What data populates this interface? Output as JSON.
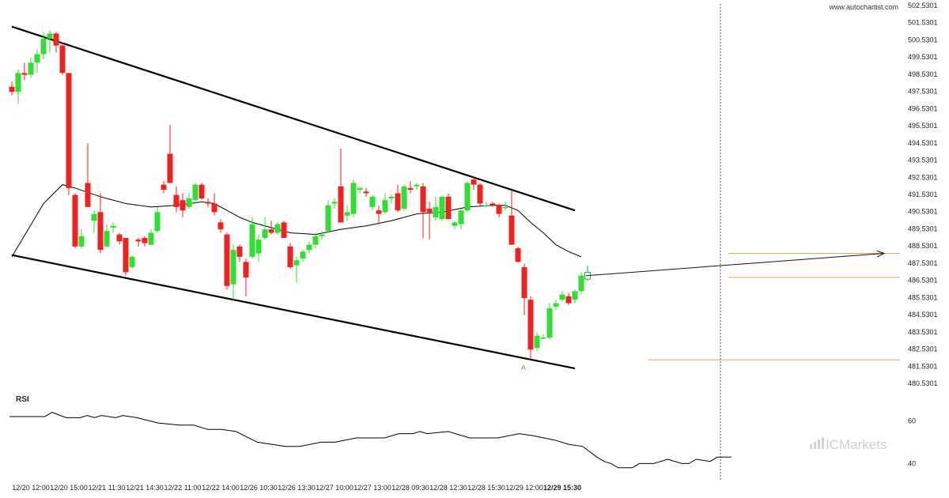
{
  "site": "www.autochartist.com",
  "brand": {
    "prefix": "IC",
    "suffix": "Markets"
  },
  "colors": {
    "up": "#33dd33",
    "down": "#ee2222",
    "pattern": "#000000",
    "level": "#e8a060",
    "ma": "#000000",
    "rsi": "#000000"
  },
  "chart_data": {
    "type": "candlestick",
    "title": "",
    "ylim": [
      480.0,
      502.8
    ],
    "y_ticks": [
      502.5301,
      501.5301,
      500.5301,
      499.5301,
      498.5301,
      497.5301,
      496.5301,
      495.5301,
      494.5301,
      493.5301,
      492.5301,
      491.5301,
      490.5301,
      489.5301,
      488.5301,
      487.5301,
      486.5301,
      485.5301,
      484.5301,
      483.5301,
      482.5301,
      481.5301,
      480.5301
    ],
    "y_tick_labels": [
      "502.5301",
      "501.5301",
      "500.5301",
      "499.5301",
      "498.5301",
      "497.5301",
      "496.5301",
      "495.5301",
      "494.5301",
      "493.5301",
      "492.5301",
      "491.5301",
      "490.5301",
      "489.5301",
      "488.5301",
      "487.5301",
      "486.5301",
      "485.5301",
      "484.5301",
      "483.5301",
      "482.5301",
      "481.5301",
      "480.5301"
    ],
    "x_labels": [
      {
        "label": "12/20 12:00",
        "bar": 3
      },
      {
        "label": "12/20 15:00",
        "bar": 9
      },
      {
        "label": "12/21 11:30",
        "bar": 15
      },
      {
        "label": "12/21 14:30",
        "bar": 21
      },
      {
        "label": "12/22 11:00",
        "bar": 27
      },
      {
        "label": "12/22 14:00",
        "bar": 33
      },
      {
        "label": "12/26 10:30",
        "bar": 39
      },
      {
        "label": "12/26 13:30",
        "bar": 45
      },
      {
        "label": "12/27 10:00",
        "bar": 51
      },
      {
        "label": "12/27 13:00",
        "bar": 57
      },
      {
        "label": "12/28 09:30",
        "bar": 63
      },
      {
        "label": "12/28 12:30",
        "bar": 69
      },
      {
        "label": "12/28 15:30",
        "bar": 75
      },
      {
        "label": "12/29 12:00",
        "bar": 81
      },
      {
        "label": "12/29 15:30",
        "bar": 87,
        "bold": true
      }
    ],
    "current_bar": 87,
    "candles": [
      {
        "o": 497.8,
        "h": 498.1,
        "l": 497.3,
        "c": 497.5
      },
      {
        "o": 497.5,
        "h": 498.8,
        "l": 496.8,
        "c": 498.6
      },
      {
        "o": 498.6,
        "h": 499.2,
        "l": 498.2,
        "c": 498.5
      },
      {
        "o": 498.5,
        "h": 499.5,
        "l": 498.3,
        "c": 499.2
      },
      {
        "o": 499.2,
        "h": 500.0,
        "l": 498.6,
        "c": 499.7
      },
      {
        "o": 499.7,
        "h": 501.0,
        "l": 499.4,
        "c": 500.6
      },
      {
        "o": 500.6,
        "h": 501.1,
        "l": 499.8,
        "c": 500.9
      },
      {
        "o": 500.9,
        "h": 501.0,
        "l": 499.8,
        "c": 500.2
      },
      {
        "o": 500.2,
        "h": 500.4,
        "l": 498.5,
        "c": 498.6
      },
      {
        "o": 498.6,
        "h": 498.6,
        "l": 491.5,
        "c": 491.9
      },
      {
        "o": 491.5,
        "h": 491.6,
        "l": 488.4,
        "c": 488.5
      },
      {
        "o": 488.5,
        "h": 489.5,
        "l": 488.4,
        "c": 489.1
      },
      {
        "o": 492.2,
        "h": 494.5,
        "l": 490.8,
        "c": 490.8
      },
      {
        "o": 490.0,
        "h": 490.6,
        "l": 489.3,
        "c": 490.4
      },
      {
        "o": 490.5,
        "h": 491.6,
        "l": 488.1,
        "c": 488.3
      },
      {
        "o": 488.5,
        "h": 489.8,
        "l": 488.5,
        "c": 489.4
      },
      {
        "o": 489.6,
        "h": 489.9,
        "l": 489.3,
        "c": 489.7
      },
      {
        "o": 489.2,
        "h": 489.3,
        "l": 488.6,
        "c": 488.8
      },
      {
        "o": 489.0,
        "h": 489.0,
        "l": 486.8,
        "c": 487.0
      },
      {
        "o": 487.3,
        "h": 488.0,
        "l": 487.2,
        "c": 487.9
      },
      {
        "o": 488.9,
        "h": 489.0,
        "l": 488.5,
        "c": 488.8
      },
      {
        "o": 489.0,
        "h": 489.1,
        "l": 488.5,
        "c": 488.7
      },
      {
        "o": 488.6,
        "h": 489.5,
        "l": 488.6,
        "c": 489.3
      },
      {
        "o": 489.4,
        "h": 490.8,
        "l": 489.3,
        "c": 490.5
      },
      {
        "o": 492.1,
        "h": 492.3,
        "l": 491.6,
        "c": 491.8
      },
      {
        "o": 493.9,
        "h": 495.6,
        "l": 492.2,
        "c": 492.2
      },
      {
        "o": 491.5,
        "h": 492.0,
        "l": 490.5,
        "c": 490.8
      },
      {
        "o": 491.2,
        "h": 491.6,
        "l": 490.2,
        "c": 490.6
      },
      {
        "o": 490.8,
        "h": 491.6,
        "l": 490.7,
        "c": 491.3
      },
      {
        "o": 491.2,
        "h": 492.2,
        "l": 491.0,
        "c": 492.1
      },
      {
        "o": 492.1,
        "h": 492.2,
        "l": 491.2,
        "c": 491.3
      },
      {
        "o": 491.1,
        "h": 491.3,
        "l": 490.8,
        "c": 491.0
      },
      {
        "o": 491.0,
        "h": 491.6,
        "l": 490.3,
        "c": 490.5
      },
      {
        "o": 489.9,
        "h": 490.1,
        "l": 489.3,
        "c": 489.5
      },
      {
        "o": 489.2,
        "h": 489.3,
        "l": 486.0,
        "c": 486.2
      },
      {
        "o": 486.3,
        "h": 488.6,
        "l": 485.4,
        "c": 488.3
      },
      {
        "o": 488.5,
        "h": 488.6,
        "l": 487.6,
        "c": 487.9
      },
      {
        "o": 487.6,
        "h": 487.8,
        "l": 485.6,
        "c": 486.7
      },
      {
        "o": 487.9,
        "h": 490.2,
        "l": 487.8,
        "c": 489.8
      },
      {
        "o": 488.1,
        "h": 489.2,
        "l": 487.6,
        "c": 488.9
      },
      {
        "o": 489.0,
        "h": 490.2,
        "l": 488.9,
        "c": 489.5
      },
      {
        "o": 489.5,
        "h": 490.0,
        "l": 489.2,
        "c": 489.3
      },
      {
        "o": 489.3,
        "h": 489.9,
        "l": 489.2,
        "c": 489.8
      },
      {
        "o": 489.9,
        "h": 490.0,
        "l": 489.0,
        "c": 489.0
      },
      {
        "o": 488.5,
        "h": 488.7,
        "l": 487.2,
        "c": 487.3
      },
      {
        "o": 487.4,
        "h": 487.9,
        "l": 486.4,
        "c": 487.7
      },
      {
        "o": 487.8,
        "h": 488.3,
        "l": 487.6,
        "c": 488.2
      },
      {
        "o": 488.3,
        "h": 488.8,
        "l": 488.1,
        "c": 488.6
      },
      {
        "o": 488.6,
        "h": 489.3,
        "l": 488.4,
        "c": 489.1
      },
      {
        "o": 489.1,
        "h": 489.4,
        "l": 488.9,
        "c": 489.2
      },
      {
        "o": 489.4,
        "h": 491.2,
        "l": 489.3,
        "c": 490.9
      },
      {
        "o": 491.0,
        "h": 491.3,
        "l": 490.7,
        "c": 491.1
      },
      {
        "o": 492.0,
        "h": 494.2,
        "l": 489.9,
        "c": 489.9
      },
      {
        "o": 490.3,
        "h": 490.9,
        "l": 490.0,
        "c": 490.5
      },
      {
        "o": 490.4,
        "h": 492.4,
        "l": 490.2,
        "c": 492.2
      },
      {
        "o": 491.8,
        "h": 492.0,
        "l": 491.6,
        "c": 491.9
      },
      {
        "o": 491.7,
        "h": 491.9,
        "l": 491.4,
        "c": 491.6
      },
      {
        "o": 490.8,
        "h": 491.5,
        "l": 490.6,
        "c": 491.4
      },
      {
        "o": 490.6,
        "h": 490.9,
        "l": 489.8,
        "c": 490.4
      },
      {
        "o": 490.5,
        "h": 491.6,
        "l": 490.4,
        "c": 491.2
      },
      {
        "o": 491.3,
        "h": 491.5,
        "l": 491.0,
        "c": 491.4
      },
      {
        "o": 491.6,
        "h": 492.1,
        "l": 490.5,
        "c": 490.6
      },
      {
        "o": 490.7,
        "h": 492.1,
        "l": 490.6,
        "c": 492.0
      },
      {
        "o": 491.9,
        "h": 492.3,
        "l": 491.6,
        "c": 491.8
      },
      {
        "o": 492.0,
        "h": 492.2,
        "l": 491.8,
        "c": 492.1
      },
      {
        "o": 492.0,
        "h": 492.2,
        "l": 489.0,
        "c": 490.5
      },
      {
        "o": 490.7,
        "h": 491.1,
        "l": 488.9,
        "c": 490.5
      },
      {
        "o": 490.2,
        "h": 491.4,
        "l": 490.0,
        "c": 490.8
      },
      {
        "o": 490.1,
        "h": 491.4,
        "l": 490.0,
        "c": 491.4
      },
      {
        "o": 491.4,
        "h": 491.6,
        "l": 490.1,
        "c": 490.1
      },
      {
        "o": 489.7,
        "h": 490.0,
        "l": 489.5,
        "c": 489.9
      },
      {
        "o": 489.8,
        "h": 490.7,
        "l": 489.5,
        "c": 490.6
      },
      {
        "o": 490.6,
        "h": 492.3,
        "l": 490.5,
        "c": 492.2
      },
      {
        "o": 492.4,
        "h": 492.6,
        "l": 491.8,
        "c": 492.1
      },
      {
        "o": 492.1,
        "h": 492.2,
        "l": 490.9,
        "c": 491.0
      },
      {
        "o": 490.9,
        "h": 491.1,
        "l": 490.8,
        "c": 490.9
      },
      {
        "o": 491.0,
        "h": 491.1,
        "l": 490.8,
        "c": 490.9
      },
      {
        "o": 490.9,
        "h": 491.0,
        "l": 490.2,
        "c": 490.4
      },
      {
        "o": 490.8,
        "h": 491.1,
        "l": 490.6,
        "c": 490.8
      },
      {
        "o": 490.3,
        "h": 491.8,
        "l": 488.6,
        "c": 488.6
      },
      {
        "o": 488.4,
        "h": 488.5,
        "l": 487.6,
        "c": 487.6
      },
      {
        "o": 487.3,
        "h": 487.5,
        "l": 484.5,
        "c": 485.5
      },
      {
        "o": 485.4,
        "h": 485.6,
        "l": 482.0,
        "c": 482.5
      },
      {
        "o": 482.6,
        "h": 483.5,
        "l": 482.4,
        "c": 483.3
      },
      {
        "o": 483.2,
        "h": 483.4,
        "l": 483.1,
        "c": 483.2
      },
      {
        "o": 483.2,
        "h": 485.2,
        "l": 483.1,
        "c": 484.9
      },
      {
        "o": 485.0,
        "h": 485.4,
        "l": 484.8,
        "c": 485.2
      },
      {
        "o": 485.4,
        "h": 485.9,
        "l": 485.3,
        "c": 485.7
      },
      {
        "o": 485.6,
        "h": 485.8,
        "l": 485.1,
        "c": 485.2
      },
      {
        "o": 485.4,
        "h": 486.0,
        "l": 485.2,
        "c": 485.9
      },
      {
        "o": 485.9,
        "h": 487.0,
        "l": 485.7,
        "c": 486.8
      },
      {
        "o": 486.6,
        "h": 487.4,
        "l": 486.5,
        "c": 487.0
      }
    ],
    "moving_average": [
      [
        0,
        487.9
      ],
      [
        5,
        491.0
      ],
      [
        8,
        492.1
      ],
      [
        10,
        491.9
      ],
      [
        14,
        491.4
      ],
      [
        18,
        491.0
      ],
      [
        22,
        490.8
      ],
      [
        26,
        490.9
      ],
      [
        30,
        491.1
      ],
      [
        32,
        491.0
      ],
      [
        34,
        490.6
      ],
      [
        36,
        490.2
      ],
      [
        38,
        489.9
      ],
      [
        40,
        489.7
      ],
      [
        44,
        489.3
      ],
      [
        48,
        489.2
      ],
      [
        52,
        489.5
      ],
      [
        56,
        489.7
      ],
      [
        60,
        490.0
      ],
      [
        64,
        490.4
      ],
      [
        68,
        490.5
      ],
      [
        72,
        490.8
      ],
      [
        76,
        490.9
      ],
      [
        78,
        490.9
      ],
      [
        80,
        490.6
      ],
      [
        82,
        489.9
      ],
      [
        84,
        489.3
      ],
      [
        86,
        488.6
      ],
      [
        88,
        488.2
      ],
      [
        90,
        487.9
      ]
    ],
    "patterns": {
      "upper_line": [
        [
          0,
          501.3
        ],
        [
          89,
          490.6
        ]
      ],
      "lower_line": [
        [
          0,
          488.0
        ],
        [
          89,
          481.4
        ]
      ],
      "forecast_arrow": [
        [
          90,
          486.8
        ],
        [
          109,
          488.1
        ]
      ]
    },
    "levels": [
      488.1,
      486.7,
      481.9
    ],
    "point_labels": [
      {
        "text": "A",
        "bar": 81,
        "value": 481.5
      }
    ],
    "rsi": {
      "label": "RSI",
      "ylim": [
        32,
        72
      ],
      "ticks": [
        60,
        40
      ],
      "tick_labels": [
        "60",
        "40"
      ],
      "values": [
        [
          0,
          62
        ],
        [
          5,
          62
        ],
        [
          6,
          64
        ],
        [
          8,
          61.5
        ],
        [
          10,
          61.5
        ],
        [
          11,
          62.5
        ],
        [
          12,
          61.5
        ],
        [
          13,
          62.5
        ],
        [
          15,
          61.5
        ],
        [
          16,
          62.5
        ],
        [
          18,
          61.5
        ],
        [
          21,
          59
        ],
        [
          24,
          58
        ],
        [
          26,
          58
        ],
        [
          28,
          56
        ],
        [
          30,
          56
        ],
        [
          32,
          55
        ],
        [
          35,
          50
        ],
        [
          39,
          48
        ],
        [
          41,
          48
        ],
        [
          44,
          50
        ],
        [
          46,
          50
        ],
        [
          49,
          52
        ],
        [
          53,
          52
        ],
        [
          55,
          54
        ],
        [
          57,
          54
        ],
        [
          58,
          55
        ],
        [
          59,
          54
        ],
        [
          62,
          55
        ],
        [
          63,
          54
        ],
        [
          65,
          52
        ],
        [
          69,
          52
        ],
        [
          72,
          54
        ],
        [
          74,
          53
        ],
        [
          77,
          51
        ],
        [
          79,
          49
        ],
        [
          81,
          48
        ],
        [
          83,
          43
        ],
        [
          84,
          41
        ],
        [
          85,
          40
        ],
        [
          86,
          38
        ],
        [
          88,
          38
        ],
        [
          89,
          40
        ],
        [
          91,
          40
        ],
        [
          93,
          42
        ],
        [
          95,
          40
        ],
        [
          96,
          40
        ],
        [
          97,
          42
        ],
        [
          99,
          41
        ],
        [
          100,
          43
        ],
        [
          102,
          43
        ]
      ]
    }
  }
}
